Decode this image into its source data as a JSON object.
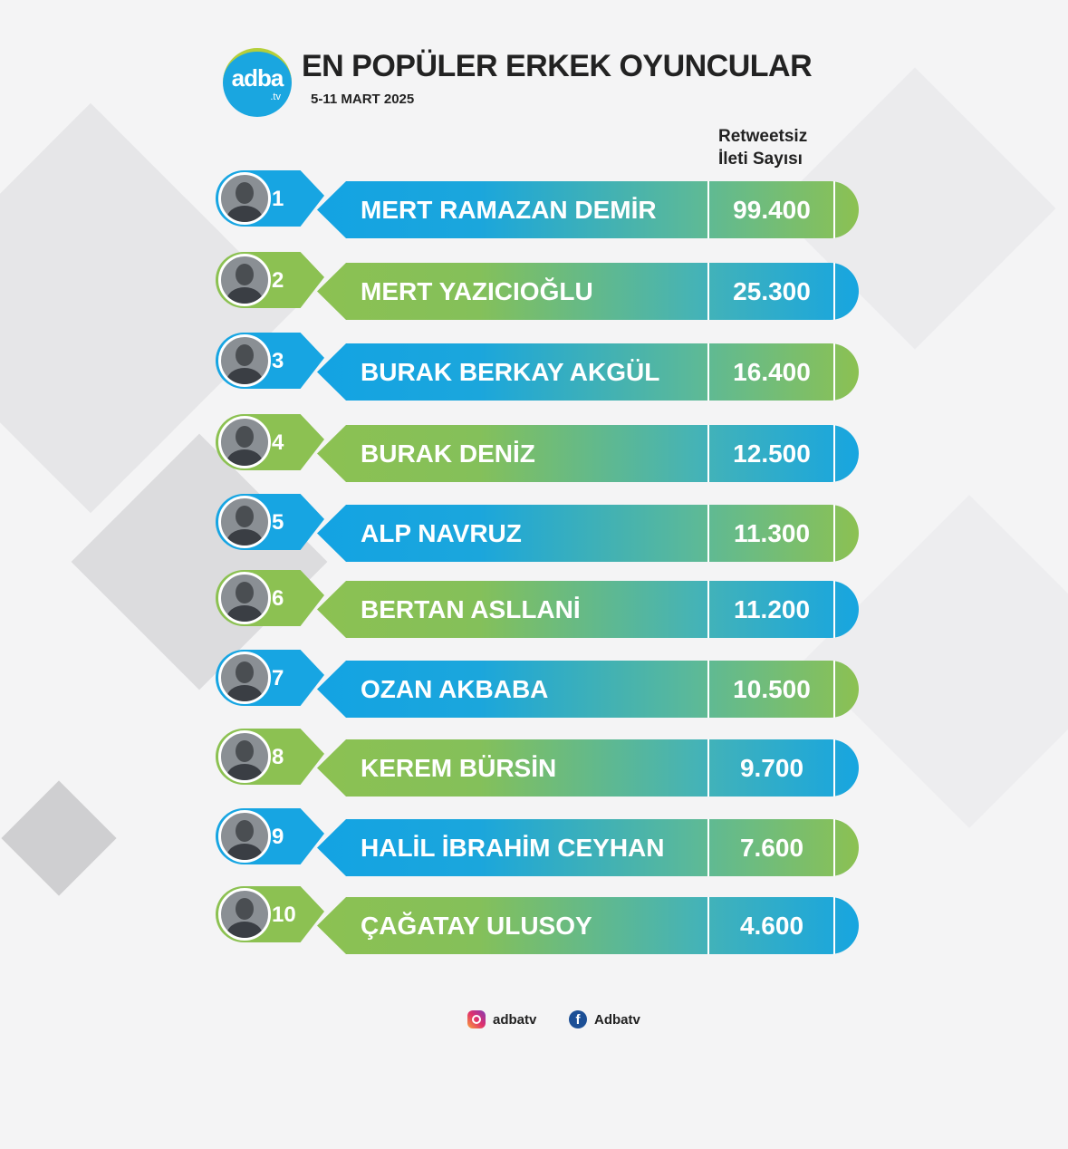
{
  "logo": {
    "main": "adba",
    "sub": ".tv"
  },
  "title": "EN POPÜLER ERKEK OYUNCULAR",
  "date": "5-11 MART 2025",
  "column_header": {
    "line1": "Retweetsiz",
    "line2": "İleti Sayısı"
  },
  "colors": {
    "blue": "#17a5e2",
    "green": "#8cc152"
  },
  "rows": [
    {
      "rank": "1",
      "name": "MERT RAMAZAN DEMİR",
      "value": "99.400"
    },
    {
      "rank": "2",
      "name": "MERT YAZICIOĞLU",
      "value": "25.300"
    },
    {
      "rank": "3",
      "name": "BURAK BERKAY AKGÜL",
      "value": "16.400"
    },
    {
      "rank": "4",
      "name": "BURAK DENİZ",
      "value": "12.500"
    },
    {
      "rank": "5",
      "name": "ALP NAVRUZ",
      "value": "11.300"
    },
    {
      "rank": "6",
      "name": "BERTAN ASLLANİ",
      "value": "11.200"
    },
    {
      "rank": "7",
      "name": "OZAN AKBABA",
      "value": "10.500"
    },
    {
      "rank": "8",
      "name": "KEREM BÜRSİN",
      "value": "9.700"
    },
    {
      "rank": "9",
      "name": "HALİL İBRAHİM CEYHAN",
      "value": "7.600"
    },
    {
      "rank": "10",
      "name": "ÇAĞATAY ULUSOY",
      "value": "4.600"
    }
  ],
  "footer": {
    "instagram": "adbatv",
    "facebook": "Adbatv",
    "facebook_glyph": "f"
  }
}
